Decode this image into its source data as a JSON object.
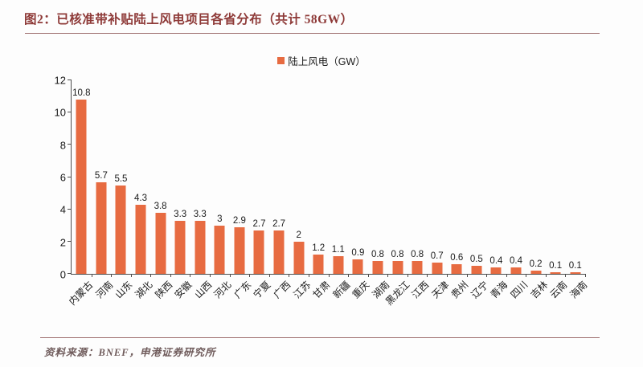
{
  "header": {
    "title": "图2：已核准带补贴陆上风电项目各省分布（共计 58GW）"
  },
  "chart_data": {
    "type": "bar",
    "title": "已核准带补贴陆上风电项目各省分布（共计 58GW）",
    "total_label": "58GW",
    "legend_label": "陆上风电（GW）",
    "legend_position": "top-center",
    "categories": [
      "内蒙古",
      "河南",
      "山东",
      "湖北",
      "陕西",
      "安徽",
      "山西",
      "河北",
      "广东",
      "宁夏",
      "广西",
      "江苏",
      "甘肃",
      "新疆",
      "重庆",
      "湖南",
      "黑龙江",
      "江西",
      "天津",
      "贵州",
      "辽宁",
      "青海",
      "四川",
      "吉林",
      "云南",
      "海南"
    ],
    "values": [
      10.8,
      5.7,
      5.5,
      4.3,
      3.8,
      3.3,
      3.3,
      3,
      2.9,
      2.7,
      2.7,
      2,
      1.2,
      1.1,
      0.9,
      0.8,
      0.8,
      0.8,
      0.7,
      0.6,
      0.5,
      0.4,
      0.4,
      0.2,
      0.1,
      0.1
    ],
    "value_labels": [
      "10.8",
      "5.7",
      "5.5",
      "4.3",
      "3.8",
      "3.3",
      "3.3",
      "3",
      "2.9",
      "2.7",
      "2.7",
      "2",
      "1.2",
      "1.1",
      "0.9",
      "0.8",
      "0.8",
      "0.8",
      "0.7",
      "0.6",
      "0.5",
      "0.4",
      "0.4",
      "0.2",
      "0.1",
      "0.1"
    ],
    "xlabel": "",
    "ylabel": "",
    "ylim": [
      0,
      12
    ],
    "yticks": [
      0,
      2,
      4,
      6,
      8,
      10,
      12
    ],
    "grid": false
  },
  "footer": {
    "source": "资料来源：BNEF，申港证券研究所"
  },
  "colors": {
    "bar": "#e76b41",
    "title_text": "#8e3a38",
    "rule": "#9f7070",
    "source_text": "#6f5b5b",
    "axis": "#4d4d4d",
    "label_text": "#1a1a1a"
  }
}
